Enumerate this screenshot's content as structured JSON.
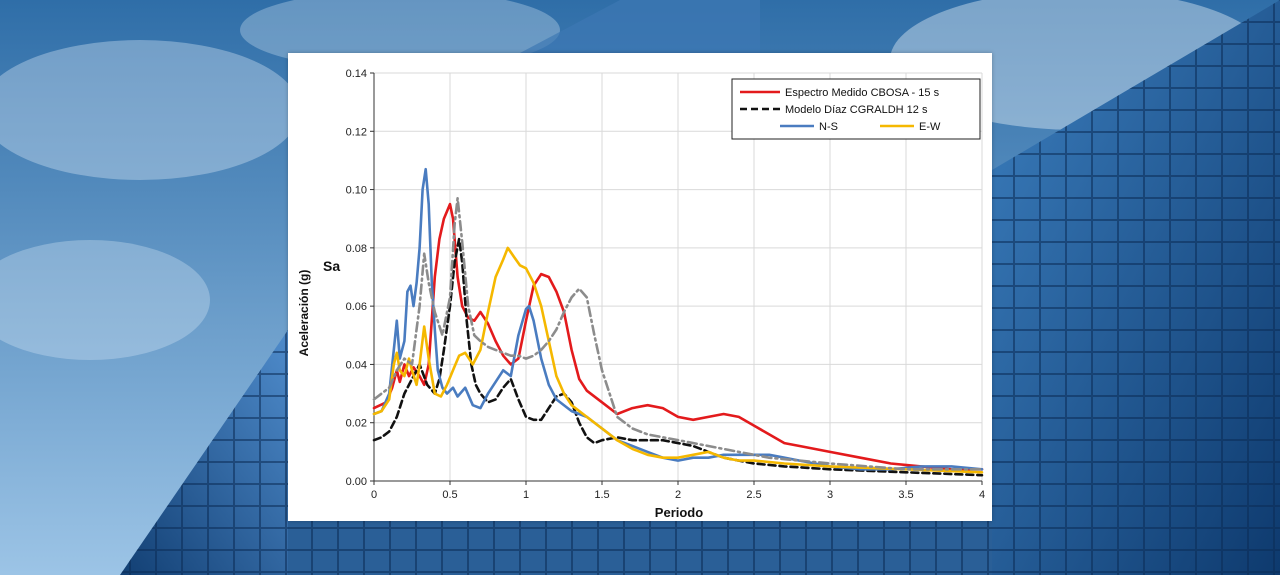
{
  "colors": {
    "sky_top": "#2f6ea8",
    "sky_bottom": "#9cc4e6",
    "building_dark": "#0e3a6e",
    "building_light": "#3c7fbf"
  },
  "chart_data": {
    "type": "line",
    "title": "",
    "xlabel": "Periodo",
    "ylabel": "Aceleración (g)",
    "ylabel_short": "Sa",
    "xlim": [
      0,
      4
    ],
    "ylim": [
      0,
      0.14
    ],
    "x_ticks": [
      "0",
      "0.5",
      "1",
      "1.5",
      "2",
      "2.5",
      "3",
      "3.5",
      "4"
    ],
    "y_ticks": [
      "0.00",
      "0.02",
      "0.04",
      "0.06",
      "0.08",
      "0.10",
      "0.12",
      "0.14"
    ],
    "grid": true,
    "legend_position": "top-right",
    "series": [
      {
        "name": "Espectro Medido CBOSA - 15 s",
        "color": "#e31a1c",
        "dash": "solid",
        "legend": true,
        "points": [
          [
            0,
            0.025
          ],
          [
            0.08,
            0.027
          ],
          [
            0.12,
            0.032
          ],
          [
            0.15,
            0.038
          ],
          [
            0.17,
            0.034
          ],
          [
            0.2,
            0.04
          ],
          [
            0.23,
            0.036
          ],
          [
            0.26,
            0.039
          ],
          [
            0.3,
            0.036
          ],
          [
            0.33,
            0.033
          ],
          [
            0.36,
            0.04
          ],
          [
            0.4,
            0.07
          ],
          [
            0.43,
            0.083
          ],
          [
            0.46,
            0.09
          ],
          [
            0.5,
            0.095
          ],
          [
            0.52,
            0.09
          ],
          [
            0.55,
            0.07
          ],
          [
            0.58,
            0.06
          ],
          [
            0.62,
            0.056
          ],
          [
            0.66,
            0.055
          ],
          [
            0.7,
            0.058
          ],
          [
            0.75,
            0.054
          ],
          [
            0.8,
            0.048
          ],
          [
            0.85,
            0.043
          ],
          [
            0.9,
            0.04
          ],
          [
            0.95,
            0.042
          ],
          [
            1.0,
            0.055
          ],
          [
            1.05,
            0.067
          ],
          [
            1.1,
            0.071
          ],
          [
            1.15,
            0.07
          ],
          [
            1.2,
            0.065
          ],
          [
            1.25,
            0.058
          ],
          [
            1.3,
            0.045
          ],
          [
            1.35,
            0.035
          ],
          [
            1.4,
            0.031
          ],
          [
            1.5,
            0.027
          ],
          [
            1.6,
            0.023
          ],
          [
            1.7,
            0.025
          ],
          [
            1.8,
            0.026
          ],
          [
            1.9,
            0.025
          ],
          [
            2.0,
            0.022
          ],
          [
            2.1,
            0.021
          ],
          [
            2.2,
            0.022
          ],
          [
            2.3,
            0.023
          ],
          [
            2.4,
            0.022
          ],
          [
            2.5,
            0.019
          ],
          [
            2.6,
            0.016
          ],
          [
            2.7,
            0.013
          ],
          [
            2.8,
            0.012
          ],
          [
            3.0,
            0.01
          ],
          [
            3.2,
            0.008
          ],
          [
            3.4,
            0.006
          ],
          [
            3.6,
            0.005
          ],
          [
            3.8,
            0.004
          ],
          [
            4.0,
            0.004
          ]
        ]
      },
      {
        "name": "Modelo Díaz CGRALDH 12 s",
        "color": "#111111",
        "dash": "dash",
        "legend": true,
        "points": [
          [
            0,
            0.014
          ],
          [
            0.05,
            0.015
          ],
          [
            0.1,
            0.017
          ],
          [
            0.15,
            0.022
          ],
          [
            0.2,
            0.03
          ],
          [
            0.25,
            0.035
          ],
          [
            0.3,
            0.04
          ],
          [
            0.35,
            0.033
          ],
          [
            0.4,
            0.03
          ],
          [
            0.43,
            0.035
          ],
          [
            0.46,
            0.045
          ],
          [
            0.5,
            0.06
          ],
          [
            0.53,
            0.075
          ],
          [
            0.56,
            0.083
          ],
          [
            0.58,
            0.075
          ],
          [
            0.61,
            0.055
          ],
          [
            0.64,
            0.04
          ],
          [
            0.67,
            0.033
          ],
          [
            0.7,
            0.03
          ],
          [
            0.75,
            0.027
          ],
          [
            0.8,
            0.028
          ],
          [
            0.85,
            0.032
          ],
          [
            0.9,
            0.035
          ],
          [
            0.95,
            0.028
          ],
          [
            1.0,
            0.022
          ],
          [
            1.05,
            0.021
          ],
          [
            1.1,
            0.021
          ],
          [
            1.15,
            0.025
          ],
          [
            1.2,
            0.029
          ],
          [
            1.25,
            0.03
          ],
          [
            1.3,
            0.027
          ],
          [
            1.35,
            0.02
          ],
          [
            1.4,
            0.015
          ],
          [
            1.45,
            0.013
          ],
          [
            1.5,
            0.014
          ],
          [
            1.6,
            0.015
          ],
          [
            1.7,
            0.014
          ],
          [
            1.8,
            0.014
          ],
          [
            1.9,
            0.014
          ],
          [
            2.0,
            0.013
          ],
          [
            2.1,
            0.012
          ],
          [
            2.2,
            0.01
          ],
          [
            2.3,
            0.008
          ],
          [
            2.4,
            0.007
          ],
          [
            2.5,
            0.006
          ],
          [
            2.7,
            0.005
          ],
          [
            3.0,
            0.004
          ],
          [
            3.5,
            0.003
          ],
          [
            4.0,
            0.002
          ]
        ]
      },
      {
        "name": "N-S",
        "color": "#4a7cc0",
        "dash": "solid",
        "legend": true,
        "points": [
          [
            0,
            0.023
          ],
          [
            0.05,
            0.024
          ],
          [
            0.1,
            0.03
          ],
          [
            0.13,
            0.045
          ],
          [
            0.15,
            0.055
          ],
          [
            0.17,
            0.042
          ],
          [
            0.2,
            0.048
          ],
          [
            0.22,
            0.065
          ],
          [
            0.24,
            0.067
          ],
          [
            0.26,
            0.06
          ],
          [
            0.28,
            0.068
          ],
          [
            0.3,
            0.08
          ],
          [
            0.32,
            0.1
          ],
          [
            0.34,
            0.107
          ],
          [
            0.36,
            0.095
          ],
          [
            0.38,
            0.068
          ],
          [
            0.4,
            0.052
          ],
          [
            0.42,
            0.038
          ],
          [
            0.45,
            0.032
          ],
          [
            0.48,
            0.03
          ],
          [
            0.52,
            0.032
          ],
          [
            0.55,
            0.029
          ],
          [
            0.6,
            0.032
          ],
          [
            0.65,
            0.026
          ],
          [
            0.7,
            0.025
          ],
          [
            0.75,
            0.03
          ],
          [
            0.8,
            0.034
          ],
          [
            0.85,
            0.038
          ],
          [
            0.9,
            0.036
          ],
          [
            0.95,
            0.05
          ],
          [
            1.0,
            0.059
          ],
          [
            1.02,
            0.06
          ],
          [
            1.05,
            0.055
          ],
          [
            1.1,
            0.042
          ],
          [
            1.15,
            0.033
          ],
          [
            1.2,
            0.028
          ],
          [
            1.3,
            0.024
          ],
          [
            1.4,
            0.022
          ],
          [
            1.5,
            0.018
          ],
          [
            1.6,
            0.014
          ],
          [
            1.7,
            0.012
          ],
          [
            1.8,
            0.01
          ],
          [
            1.9,
            0.008
          ],
          [
            2.0,
            0.007
          ],
          [
            2.1,
            0.008
          ],
          [
            2.2,
            0.008
          ],
          [
            2.3,
            0.009
          ],
          [
            2.4,
            0.009
          ],
          [
            2.5,
            0.009
          ],
          [
            2.6,
            0.009
          ],
          [
            2.7,
            0.008
          ],
          [
            2.8,
            0.007
          ],
          [
            3.0,
            0.005
          ],
          [
            3.2,
            0.004
          ],
          [
            3.4,
            0.004
          ],
          [
            3.6,
            0.005
          ],
          [
            3.8,
            0.005
          ],
          [
            4.0,
            0.004
          ]
        ]
      },
      {
        "name": "E-W",
        "color": "#f5b800",
        "dash": "solid",
        "legend": true,
        "points": [
          [
            0,
            0.023
          ],
          [
            0.05,
            0.024
          ],
          [
            0.1,
            0.028
          ],
          [
            0.13,
            0.04
          ],
          [
            0.15,
            0.044
          ],
          [
            0.17,
            0.038
          ],
          [
            0.2,
            0.036
          ],
          [
            0.23,
            0.042
          ],
          [
            0.25,
            0.038
          ],
          [
            0.28,
            0.033
          ],
          [
            0.3,
            0.04
          ],
          [
            0.33,
            0.053
          ],
          [
            0.36,
            0.042
          ],
          [
            0.4,
            0.03
          ],
          [
            0.44,
            0.029
          ],
          [
            0.48,
            0.033
          ],
          [
            0.52,
            0.038
          ],
          [
            0.56,
            0.043
          ],
          [
            0.6,
            0.044
          ],
          [
            0.65,
            0.04
          ],
          [
            0.7,
            0.045
          ],
          [
            0.75,
            0.058
          ],
          [
            0.8,
            0.07
          ],
          [
            0.85,
            0.076
          ],
          [
            0.88,
            0.08
          ],
          [
            0.92,
            0.077
          ],
          [
            0.96,
            0.074
          ],
          [
            1.0,
            0.073
          ],
          [
            1.05,
            0.068
          ],
          [
            1.1,
            0.06
          ],
          [
            1.15,
            0.048
          ],
          [
            1.2,
            0.036
          ],
          [
            1.25,
            0.03
          ],
          [
            1.3,
            0.026
          ],
          [
            1.4,
            0.022
          ],
          [
            1.5,
            0.018
          ],
          [
            1.6,
            0.014
          ],
          [
            1.7,
            0.011
          ],
          [
            1.8,
            0.009
          ],
          [
            1.9,
            0.008
          ],
          [
            2.0,
            0.008
          ],
          [
            2.1,
            0.009
          ],
          [
            2.2,
            0.01
          ],
          [
            2.3,
            0.008
          ],
          [
            2.4,
            0.007
          ],
          [
            2.5,
            0.007
          ],
          [
            2.7,
            0.006
          ],
          [
            3.0,
            0.005
          ],
          [
            3.5,
            0.004
          ],
          [
            4.0,
            0.003
          ]
        ]
      },
      {
        "color": "#8c8c8c",
        "dash": "dashdot",
        "legend": false,
        "points": [
          [
            0,
            0.028
          ],
          [
            0.1,
            0.032
          ],
          [
            0.15,
            0.038
          ],
          [
            0.2,
            0.042
          ],
          [
            0.25,
            0.04
          ],
          [
            0.3,
            0.06
          ],
          [
            0.33,
            0.078
          ],
          [
            0.36,
            0.068
          ],
          [
            0.4,
            0.058
          ],
          [
            0.45,
            0.05
          ],
          [
            0.5,
            0.063
          ],
          [
            0.53,
            0.088
          ],
          [
            0.55,
            0.097
          ],
          [
            0.58,
            0.082
          ],
          [
            0.62,
            0.06
          ],
          [
            0.66,
            0.05
          ],
          [
            0.7,
            0.048
          ],
          [
            0.75,
            0.046
          ],
          [
            0.8,
            0.045
          ],
          [
            0.85,
            0.044
          ],
          [
            0.9,
            0.043
          ],
          [
            0.95,
            0.043
          ],
          [
            1.0,
            0.042
          ],
          [
            1.05,
            0.043
          ],
          [
            1.1,
            0.045
          ],
          [
            1.15,
            0.048
          ],
          [
            1.2,
            0.052
          ],
          [
            1.25,
            0.058
          ],
          [
            1.3,
            0.063
          ],
          [
            1.35,
            0.066
          ],
          [
            1.4,
            0.063
          ],
          [
            1.45,
            0.05
          ],
          [
            1.5,
            0.038
          ],
          [
            1.55,
            0.03
          ],
          [
            1.6,
            0.022
          ],
          [
            1.7,
            0.018
          ],
          [
            1.8,
            0.016
          ],
          [
            1.9,
            0.015
          ],
          [
            2.0,
            0.014
          ],
          [
            2.2,
            0.012
          ],
          [
            2.4,
            0.01
          ],
          [
            2.6,
            0.008
          ],
          [
            2.8,
            0.007
          ],
          [
            3.0,
            0.006
          ],
          [
            3.5,
            0.004
          ],
          [
            4.0,
            0.004
          ]
        ]
      }
    ]
  }
}
